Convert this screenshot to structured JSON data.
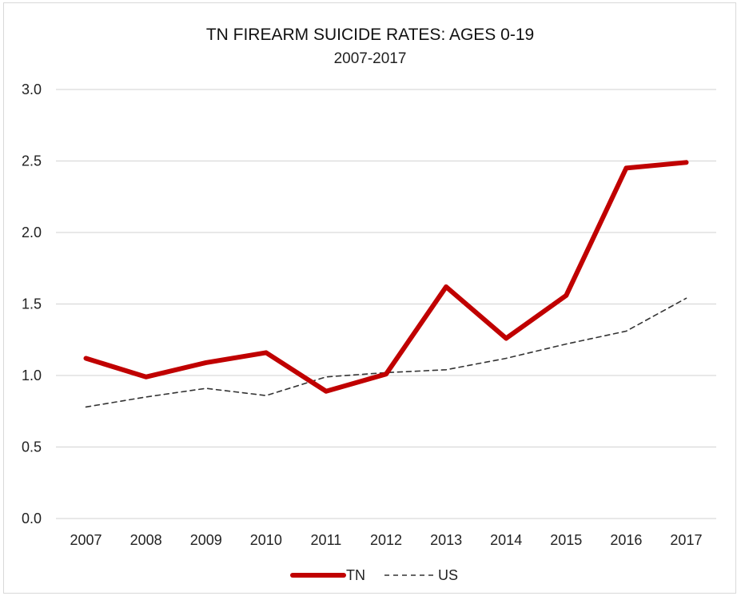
{
  "chart_data": {
    "type": "line",
    "title": "TN FIREARM SUICIDE RATES: AGES 0-19",
    "subtitle": "2007-2017",
    "xlabel": "",
    "ylabel": "",
    "categories": [
      "2007",
      "2008",
      "2009",
      "2010",
      "2011",
      "2012",
      "2013",
      "2014",
      "2015",
      "2016",
      "2017"
    ],
    "ylim": [
      0,
      3.0
    ],
    "yticks": [
      "0.0",
      "0.5",
      "1.0",
      "1.5",
      "2.0",
      "2.5",
      "3.0"
    ],
    "grid": true,
    "legend_position": "bottom",
    "series": [
      {
        "name": "TN",
        "color": "#c00000",
        "style": "solid-thick",
        "values": [
          1.12,
          0.99,
          1.09,
          1.16,
          0.89,
          1.01,
          1.62,
          1.26,
          1.56,
          2.45,
          2.49
        ]
      },
      {
        "name": "US",
        "color": "#333333",
        "style": "dashed",
        "values": [
          0.78,
          0.85,
          0.91,
          0.86,
          0.99,
          1.02,
          1.04,
          1.12,
          1.22,
          1.31,
          1.54
        ]
      }
    ]
  }
}
